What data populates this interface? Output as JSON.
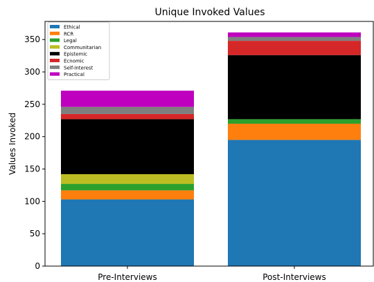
{
  "chart_data": {
    "type": "bar",
    "stacked": true,
    "title": "Unique Invoked Values",
    "xlabel": "",
    "ylabel": "Values Invoked",
    "ylim": [
      0,
      378
    ],
    "yticks": [
      0,
      50,
      100,
      150,
      200,
      250,
      300,
      350
    ],
    "categories": [
      "Pre-Interviews",
      "Post-Interviews"
    ],
    "legend_position": "top-left",
    "grid": false,
    "series": [
      {
        "name": "Ethical",
        "color": "#1f77b4",
        "values": [
          103,
          195
        ]
      },
      {
        "name": "RCR",
        "color": "#ff7f0e",
        "values": [
          14,
          25
        ]
      },
      {
        "name": "Legal",
        "color": "#2ca02c",
        "values": [
          10,
          7
        ]
      },
      {
        "name": "Communitarian",
        "color": "#bcbd22",
        "values": [
          15,
          0
        ]
      },
      {
        "name": "Epistemic",
        "color": "#000000",
        "values": [
          85,
          99
        ]
      },
      {
        "name": "Ecnomic",
        "color": "#d62728",
        "values": [
          8,
          22
        ]
      },
      {
        "name": "Self-Interest",
        "color": "#7f7f7f",
        "values": [
          11,
          6
        ]
      },
      {
        "name": "Practical",
        "color": "#bf00bf",
        "values": [
          25,
          7
        ]
      }
    ]
  }
}
